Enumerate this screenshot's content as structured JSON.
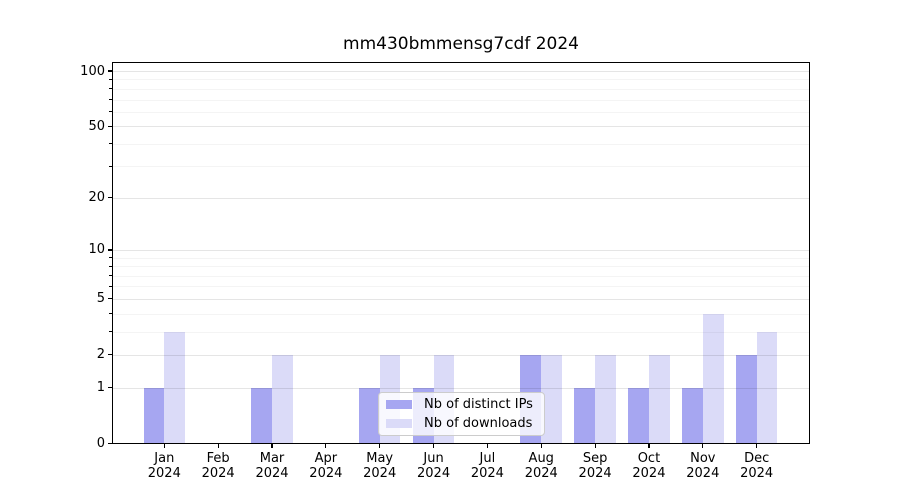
{
  "figure": {
    "background": "#ffffff"
  },
  "chart_data": {
    "type": "bar",
    "title": "mm430bmmensg7cdf 2024",
    "xlabel": "",
    "ylabel": "",
    "categories": [
      "Jan 2024",
      "Feb 2024",
      "Mar 2024",
      "Apr 2024",
      "May 2024",
      "Jun 2024",
      "Jul 2024",
      "Aug 2024",
      "Sep 2024",
      "Oct 2024",
      "Nov 2024",
      "Dec 2024"
    ],
    "series": [
      {
        "name": "Nb of distinct IPs",
        "color": "#a6a6f1",
        "values": [
          1,
          0,
          1,
          0,
          1,
          1,
          0,
          2,
          1,
          1,
          1,
          2
        ]
      },
      {
        "name": "Nb of downloads",
        "color": "#dbdbf8",
        "values": [
          3,
          0,
          2,
          0,
          2,
          2,
          0,
          2,
          2,
          2,
          4,
          3
        ]
      }
    ],
    "yscale": "log1p",
    "ylim": [
      0,
      112
    ],
    "yticks": [
      0,
      1,
      2,
      5,
      10,
      20,
      50,
      100
    ],
    "yticks_minor": [
      3,
      4,
      6,
      7,
      8,
      9,
      30,
      40,
      60,
      70,
      80,
      90
    ],
    "grid": "horizontal major + minor",
    "legend": {
      "position": "inside bottom-center",
      "entries": [
        "Nb of distinct IPs",
        "Nb of downloads"
      ]
    }
  },
  "colors": {
    "axis": "#000000",
    "tick_labels": "#000000",
    "grid_major": "rgba(0,0,0,0.10)",
    "grid_minor": "rgba(0,0,0,0.045)",
    "legend_border": "#cccccc",
    "legend_background": "rgba(255,255,255,0.8)"
  }
}
